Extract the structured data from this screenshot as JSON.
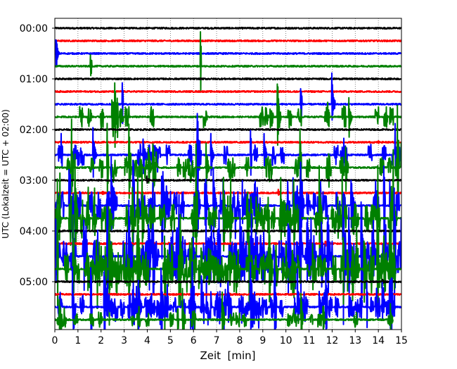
{
  "chart_data": {
    "type": "line",
    "title": "",
    "xlabel": "Zeit  [min]",
    "ylabel": "UTC (Lokalzeit = UTC + 02:00)",
    "xlim": [
      0,
      15
    ],
    "x_ticks": [
      "0",
      "1",
      "2",
      "3",
      "4",
      "5",
      "6",
      "7",
      "8",
      "9",
      "10",
      "11",
      "12",
      "13",
      "14",
      "15"
    ],
    "y_ticks": [
      "00:00",
      "01:00",
      "02:00",
      "03:00",
      "04:00",
      "05:00"
    ],
    "grid": "vertical dotted at each minute",
    "trace_minutes": 15,
    "last_trace_end_min": 14.65,
    "colors": [
      "#000000",
      "#ff0000",
      "#0000ff",
      "#008000"
    ],
    "traces": [
      {
        "start": "00:00",
        "color": "#000000"
      },
      {
        "start": "00:15",
        "color": "#ff0000"
      },
      {
        "start": "00:30",
        "color": "#0000ff"
      },
      {
        "start": "00:45",
        "color": "#008000"
      },
      {
        "start": "01:00",
        "color": "#000000"
      },
      {
        "start": "01:15",
        "color": "#ff0000"
      },
      {
        "start": "01:30",
        "color": "#0000ff"
      },
      {
        "start": "01:45",
        "color": "#008000"
      },
      {
        "start": "02:00",
        "color": "#000000"
      },
      {
        "start": "02:15",
        "color": "#ff0000"
      },
      {
        "start": "02:30",
        "color": "#0000ff"
      },
      {
        "start": "02:45",
        "color": "#008000"
      },
      {
        "start": "03:00",
        "color": "#000000"
      },
      {
        "start": "03:15",
        "color": "#ff0000"
      },
      {
        "start": "03:30",
        "color": "#0000ff"
      },
      {
        "start": "03:45",
        "color": "#008000"
      },
      {
        "start": "04:00",
        "color": "#000000"
      },
      {
        "start": "04:15",
        "color": "#ff0000"
      },
      {
        "start": "04:30",
        "color": "#0000ff"
      },
      {
        "start": "04:45",
        "color": "#008000"
      },
      {
        "start": "05:00",
        "color": "#000000"
      },
      {
        "start": "05:15",
        "color": "#ff0000"
      },
      {
        "start": "05:30",
        "color": "#0000ff"
      },
      {
        "start": "05:45",
        "color": "#008000"
      }
    ]
  }
}
